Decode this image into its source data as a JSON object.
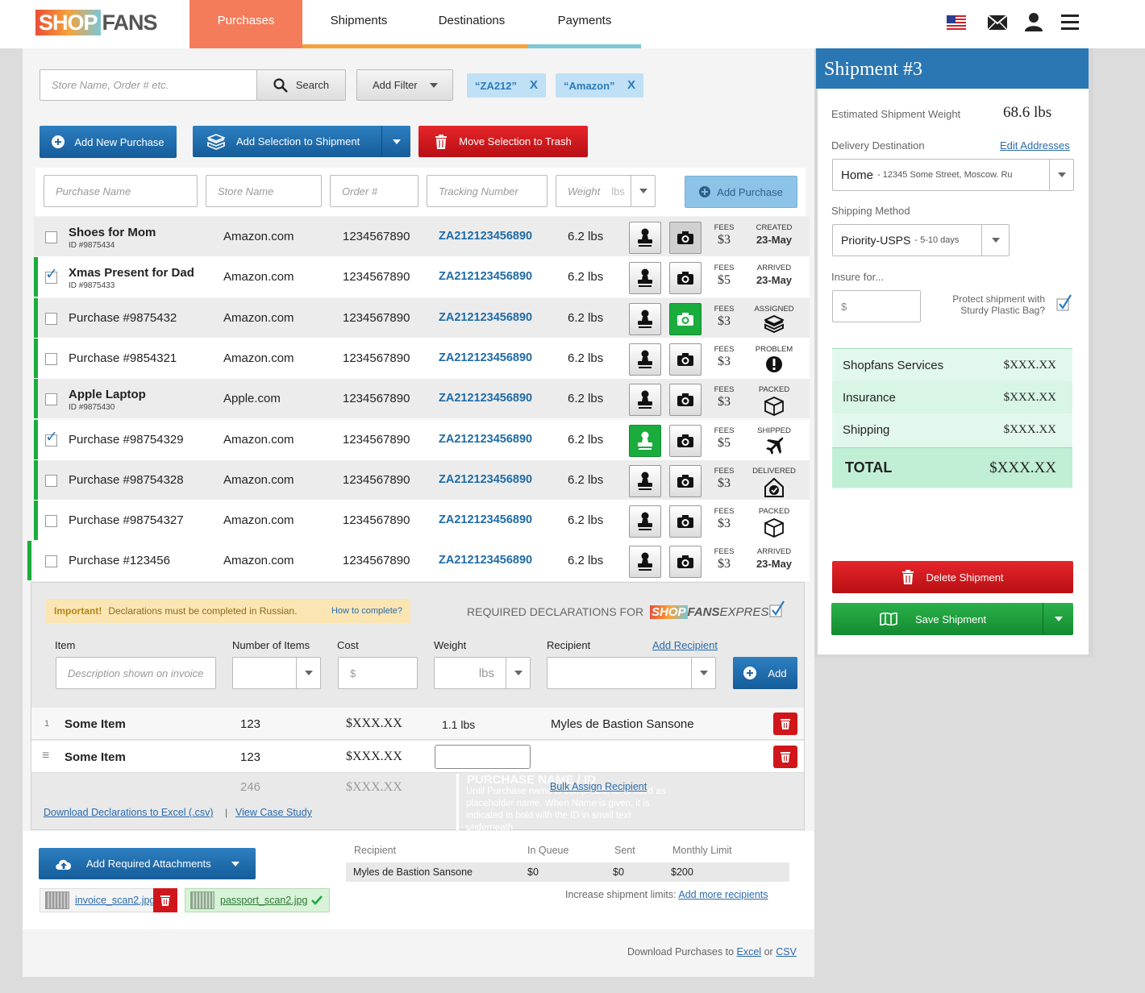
{
  "header": {
    "logo_shop": "SHOP",
    "logo_fans": "FANS",
    "tabs": [
      {
        "label": "Purchases",
        "color": "#f47c5a"
      },
      {
        "label": "Shipments",
        "color": "#f6a13a"
      },
      {
        "label": "Destinations",
        "color": "#f6a13a"
      },
      {
        "label": "Payments",
        "color": "#7cc6d6"
      }
    ]
  },
  "search": {
    "placeholder": "Store Name, Order # etc.",
    "button": "Search",
    "filter_button": "Add Filter",
    "chips": [
      "“ZA212”",
      "“Amazon”"
    ],
    "chip_close": "X"
  },
  "actions": {
    "add_new": "Add New Purchase",
    "add_selection": "Add Selection to Shipment",
    "trash": "Move Selection to Trash"
  },
  "new_purchase": {
    "name_placeholder": "Purchase Name",
    "store_placeholder": "Store Name",
    "order_placeholder": "Order #",
    "tracking_placeholder": "Tracking Number",
    "weight_placeholder": "Weight",
    "weight_unit": "lbs",
    "add_button": "Add Purchase"
  },
  "rows": [
    {
      "name": "Shoes for Mom",
      "id": "ID #9875434",
      "store": "Amazon.com",
      "order": "1234567890",
      "tracking": "ZA212123456890",
      "weight": "6.2 lbs",
      "fees_label": "FEES",
      "fees": "$3",
      "status": "CREATED",
      "status_value": "23-May",
      "checked": false
    },
    {
      "name": "Xmas Present for Dad",
      "id": "ID #9875433",
      "store": "Amazon.com",
      "order": "1234567890",
      "tracking": "ZA212123456890",
      "weight": "6.2 lbs",
      "fees_label": "FEES",
      "fees": "$5",
      "status": "ARRIVED",
      "status_value": "23-May",
      "checked": true
    },
    {
      "name": "Purchase #9875432",
      "store": "Amazon.com",
      "order": "1234567890",
      "tracking": "ZA212123456890",
      "weight": "6.2 lbs",
      "fees_label": "FEES",
      "fees": "$3",
      "status": "ASSIGNED",
      "checked": false
    },
    {
      "name": "Purchase #9854321",
      "store": "Amazon.com",
      "order": "1234567890",
      "tracking": "ZA212123456890",
      "weight": "6.2 lbs",
      "fees_label": "FEES",
      "fees": "$3",
      "status": "PROBLEM",
      "checked": false
    },
    {
      "name": "Apple Laptop",
      "id": "ID #9875430",
      "store": "Apple.com",
      "order": "1234567890",
      "tracking": "ZA212123456890",
      "weight": "6.2 lbs",
      "fees_label": "FEES",
      "fees": "$3",
      "status": "PACKED",
      "checked": false
    },
    {
      "name": "Purchase #98754329",
      "store": "Amazon.com",
      "order": "1234567890",
      "tracking": "ZA212123456890",
      "weight": "6.2 lbs",
      "fees_label": "FEES",
      "fees": "$5",
      "status": "SHIPPED",
      "checked": true
    },
    {
      "name": "Purchase #98754328",
      "store": "Amazon.com",
      "order": "1234567890",
      "tracking": "ZA212123456890",
      "weight": "6.2 lbs",
      "fees_label": "FEES",
      "fees": "$3",
      "status": "DELIVERED",
      "checked": false
    },
    {
      "name": "Purchase #98754327",
      "store": "Amazon.com",
      "order": "1234567890",
      "tracking": "ZA212123456890",
      "weight": "6.2 lbs",
      "fees_label": "FEES",
      "fees": "$3",
      "status": "PACKED",
      "checked": false
    },
    {
      "name": "Purchase #123456",
      "store": "Amazon.com",
      "order": "1234567890",
      "tracking": "ZA212123456890",
      "weight": "6.2 lbs",
      "fees_label": "FEES",
      "fees": "$3",
      "status": "ARRIVED",
      "status_value": "23-May",
      "checked": false
    }
  ],
  "declarations": {
    "important": "Important!",
    "notice": "Declarations must be completed in Russian.",
    "how_link": "How to complete?",
    "required_label": "REQUIRED DECLARATIONS FOR",
    "brand_shop": "SHOP",
    "brand_fans": "FANS",
    "brand_express": "EXPRESS",
    "col_item": "Item",
    "col_number": "Number of Items",
    "col_cost": "Cost",
    "col_weight": "Weight",
    "col_recipient": "Recipient",
    "add_recipient": "Add Recipient",
    "item_placeholder": "Description shown on invoice",
    "cost_placeholder": "$",
    "weight_unit": "lbs",
    "add_button": "Add",
    "items": [
      {
        "index": "1",
        "name": "Some Item",
        "count": "123",
        "cost": "$XXX.XX",
        "weight": "1.1 lbs",
        "recipient": "Myles de Bastion Sansone"
      },
      {
        "index": "≡",
        "name": "Some Item",
        "count": "123",
        "cost": "$XXX.XX"
      }
    ],
    "total_count": "246",
    "total_cost": "$XXX.XX",
    "bulk_assign": "Bulk Assign Recipient",
    "tooltip_title": "PURCHASE NAME / ID",
    "tooltip_text": "Until Purchase name is completed, ID is used as placeholder name. When Name is given, it is indicated in bold with the ID in small text underneath",
    "download_link": "Download Declarations to Excel (.csv)",
    "separator": "|",
    "case_study": "View Case Study"
  },
  "attachments": {
    "button": "Add Required Attachments",
    "files": [
      {
        "name": "invoice_scan2.jpg"
      },
      {
        "name": "passport_scan2.jpg"
      }
    ]
  },
  "recipients": {
    "headers": [
      "Recipient",
      "In Queue",
      "Sent",
      "Monthly Limit"
    ],
    "row": [
      "Myles de Bastion Sansone",
      "$0",
      "$0",
      "$200"
    ],
    "limits_text": "Increase shipment limits:",
    "limits_link": "Add more recipients"
  },
  "footer": {
    "text": "Download Purchases to",
    "excel": "Excel",
    "or": "or",
    "csv": "CSV"
  },
  "shipment": {
    "title": "Shipment #3",
    "weight_label": "Estimated Shipment Weight",
    "weight_value": "68.6 lbs",
    "destination_label": "Delivery Destination",
    "edit_addresses": "Edit Addresses",
    "destination_name": "Home",
    "destination_addr": "- 12345 Some Street, Moscow. Ru",
    "method_label": "Shipping Method",
    "method_name": "Priority-USPS",
    "method_days": "- 5-10 days",
    "insure_label": "Insure for...",
    "insure_placeholder": "$",
    "protect_text": "Protect shipment with Sturdy Plastic Bag?",
    "summary": [
      {
        "label": "Shopfans Services",
        "value": "$XXX.XX"
      },
      {
        "label": "Insurance",
        "value": "$XXX.XX"
      },
      {
        "label": "Shipping",
        "value": "$XXX.XX"
      }
    ],
    "total_label": "TOTAL",
    "total_value": "$XXX.XX",
    "delete_button": "Delete Shipment",
    "save_button": "Save Shipment"
  }
}
